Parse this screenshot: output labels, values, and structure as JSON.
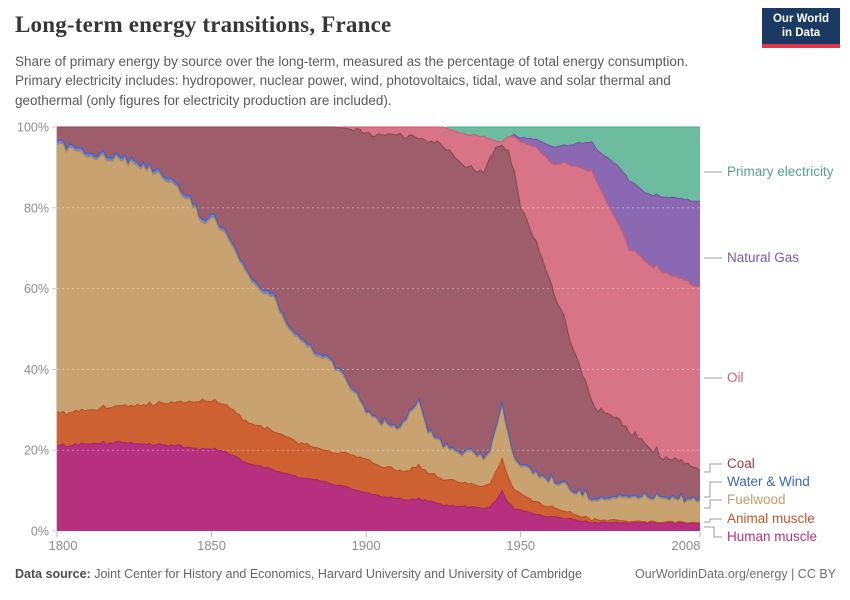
{
  "header": {
    "title": "Long-term energy transitions, France",
    "subtitle": "Share of primary energy by source over the long-term, measured as the percentage of total energy consumption. Primary electricity includes: hydropower, nuclear power, wind, photovoltaics, tidal, wave and solar thermal and geothermal (only figures for electricity production are included).",
    "logo": {
      "line1": "Our World",
      "line2": "in Data",
      "bg": "#1a3a63",
      "accent": "#e0364a"
    }
  },
  "footer": {
    "source_label": "Data source:",
    "source_text": " Joint Center for History and Economics, Harvard University and University of Cambridge",
    "license_text": "OurWorldinData.org/energy | CC BY"
  },
  "chart_data": {
    "type": "area",
    "stacked": true,
    "unit": "%",
    "xlim": [
      1800,
      2008
    ],
    "ylim": [
      0,
      100
    ],
    "grid": "dashed-horizontal",
    "legend_position": "right",
    "y_ticks": [
      "0%",
      "20%",
      "40%",
      "60%",
      "80%",
      "100%"
    ],
    "y_tick_values": [
      0,
      20,
      40,
      60,
      80,
      100
    ],
    "x_ticks": [
      1800,
      1850,
      1900,
      1950,
      2008
    ],
    "x": [
      1800,
      1810,
      1820,
      1830,
      1840,
      1845,
      1847,
      1850,
      1855,
      1860,
      1865,
      1870,
      1875,
      1880,
      1885,
      1890,
      1895,
      1900,
      1905,
      1910,
      1913,
      1915,
      1917,
      1920,
      1925,
      1930,
      1935,
      1938,
      1940,
      1942,
      1944,
      1946,
      1948,
      1950,
      1955,
      1960,
      1965,
      1970,
      1973,
      1975,
      1980,
      1985,
      1990,
      1995,
      2000,
      2005,
      2008
    ],
    "series": [
      {
        "name": "Human muscle",
        "color": "#b6307f",
        "stroke": "#a82470",
        "label_color": "#b93078",
        "values": [
          21,
          21.5,
          22,
          21.5,
          21,
          20.5,
          20.5,
          20.5,
          19.5,
          17.5,
          16,
          15,
          14,
          13,
          12.5,
          11.5,
          10.5,
          9.5,
          8.5,
          8,
          7.5,
          8,
          8,
          7.5,
          6.5,
          6,
          6,
          5.5,
          6,
          7.5,
          10,
          7,
          5.5,
          5,
          4,
          3.5,
          3,
          2.5,
          2,
          2,
          2,
          2,
          2,
          2,
          2,
          2,
          2
        ]
      },
      {
        "name": "Animal muscle",
        "color": "#cd6132",
        "stroke": "#bf5022",
        "label_color": "#c2552e",
        "values": [
          8,
          8.5,
          9,
          10,
          11,
          11.5,
          12,
          12,
          11.5,
          10.5,
          10,
          9.5,
          9,
          8.5,
          8,
          8,
          8.5,
          8.5,
          7.5,
          7,
          7,
          8,
          8.5,
          7,
          6.5,
          6,
          5.5,
          5.5,
          6,
          7,
          8,
          6,
          4.5,
          4,
          3,
          2.5,
          1.5,
          1,
          0.8,
          0.7,
          0.5,
          0.4,
          0.3,
          0.2,
          0.2,
          0.2,
          0.2
        ]
      },
      {
        "name": "Fuelwood",
        "color": "#c8a26f",
        "stroke": "#b08a50",
        "label_color": "#c49e67",
        "values": [
          66.5,
          63,
          61,
          58,
          52,
          48,
          43,
          45.5,
          41,
          38,
          34,
          33,
          27,
          25,
          23,
          21,
          17,
          12,
          11,
          10,
          13,
          14,
          16,
          10,
          8.5,
          7.5,
          7.5,
          7,
          8,
          11,
          13,
          10,
          7,
          7,
          6.5,
          6.5,
          6,
          5.5,
          5.2,
          5.3,
          5.5,
          6,
          6,
          6,
          5.8,
          5.6,
          5.6
        ]
      },
      {
        "name": "Water & Wind",
        "color": "#6b84d6",
        "stroke": "#3f62c9",
        "label_color": "#3564c8",
        "values": [
          0.8,
          0.8,
          0.8,
          0.8,
          0.8,
          0.8,
          0.8,
          0.8,
          0.8,
          0.8,
          0.8,
          0.8,
          0.7,
          0.7,
          0.7,
          0.6,
          0.6,
          0.5,
          0.5,
          0.5,
          0.5,
          0.5,
          0.5,
          0.5,
          0.5,
          0.5,
          0.5,
          0.5,
          0.5,
          0.5,
          0.5,
          0.5,
          0.5,
          0.5,
          0.5,
          0.5,
          0.5,
          0.5,
          0.5,
          0.5,
          0.5,
          0.5,
          0.5,
          0.5,
          0.5,
          0.5,
          0.5
        ]
      },
      {
        "name": "Coal",
        "color": "#9d5d6a",
        "stroke": "#8a4756",
        "label_color": "#9c3b40",
        "values": [
          3.7,
          6.2,
          7.2,
          9.7,
          15.2,
          19.2,
          23.7,
          21.2,
          27.2,
          33.2,
          39.2,
          41.7,
          49.3,
          52.8,
          55.8,
          58.9,
          62.9,
          68,
          70.5,
          72.5,
          69.5,
          67,
          64.5,
          71.5,
          73.5,
          71.5,
          70,
          70.5,
          72,
          69.3,
          64,
          70,
          71,
          64,
          57,
          48,
          39,
          29,
          24,
          22,
          20,
          16.1,
          13,
          10,
          9,
          8,
          8
        ]
      },
      {
        "name": "Oil",
        "color": "#d77487",
        "stroke": "#cd5b72",
        "label_color": "#d2607a",
        "values": [
          0,
          0,
          0,
          0,
          0,
          0,
          0,
          0,
          0,
          0,
          0,
          0,
          0,
          0,
          0,
          0,
          0.5,
          1.5,
          2,
          2,
          2.5,
          2.5,
          2.5,
          3.5,
          4.5,
          7,
          8.5,
          8.5,
          4.5,
          1.2,
          0.8,
          4,
          9,
          16,
          24,
          30,
          41,
          51,
          57,
          55,
          50,
          45,
          45,
          46,
          45.5,
          45,
          44.5
        ]
      },
      {
        "name": "Natural Gas",
        "color": "#8a68b2",
        "stroke": "#7852a8",
        "label_color": "#7e57b2",
        "values": [
          0,
          0,
          0,
          0,
          0,
          0,
          0,
          0,
          0,
          0,
          0,
          0,
          0,
          0,
          0,
          0,
          0,
          0,
          0,
          0,
          0,
          0,
          0,
          0,
          0,
          0,
          0,
          0,
          0,
          0,
          0,
          0,
          0.5,
          1,
          2,
          4,
          4.5,
          6.5,
          7,
          8.5,
          13,
          17,
          17,
          18,
          19.5,
          20.5,
          21
        ]
      },
      {
        "name": "Primary electricity",
        "color": "#6dbc9f",
        "stroke": "#4fa98a",
        "label_color": "#56a287",
        "values": [
          0,
          0,
          0,
          0,
          0,
          0,
          0,
          0,
          0,
          0,
          0,
          0,
          0,
          0,
          0,
          0,
          0,
          0,
          0,
          0,
          0,
          0,
          0,
          0,
          0,
          1.5,
          2,
          2.5,
          3,
          3.5,
          3.7,
          2.5,
          2,
          2.5,
          3,
          5,
          4.5,
          4,
          3.5,
          6,
          8.5,
          13,
          16.2,
          17.3,
          17.5,
          18.2,
          18.2
        ]
      }
    ]
  }
}
